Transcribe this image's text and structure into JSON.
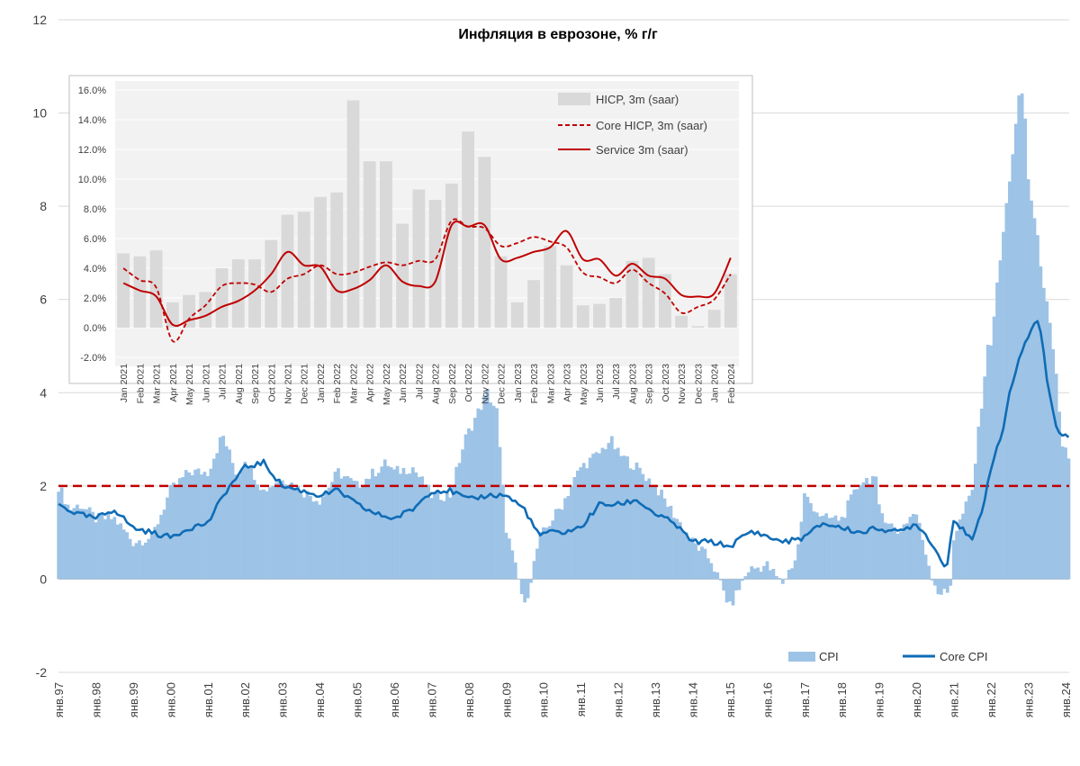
{
  "chart_data": [
    {
      "type": "bar+line",
      "title": "Инфляция в еврозоне, % г/г",
      "xlabel": "",
      "ylabel": "",
      "ylim": [
        -2,
        12
      ],
      "yticks": [
        "-2",
        "0",
        "2",
        "4",
        "6",
        "8",
        "10",
        "12"
      ],
      "xticks": [
        "янв.97",
        "янв.98",
        "янв.99",
        "янв.00",
        "янв.01",
        "янв.02",
        "янв.03",
        "янв.04",
        "янв.05",
        "янв.06",
        "янв.07",
        "янв.08",
        "янв.09",
        "янв.10",
        "янв.11",
        "янв.12",
        "янв.13",
        "янв.14",
        "янв.15",
        "янв.16",
        "янв.17",
        "янв.18",
        "янв.19",
        "янв.20",
        "янв.21",
        "янв.22",
        "янв.23",
        "янв.24"
      ],
      "target_line": {
        "y": 2,
        "color": "#c00000"
      },
      "legend": {
        "placement": "bottom-right",
        "entries": [
          "CPI",
          "Core CPI"
        ]
      },
      "colors": {
        "cpi": "#9dc3e6",
        "core": "#0f6cb6"
      },
      "series": [
        {
          "name": "CPI",
          "style": "bar",
          "anchors": [
            [
              1997.0,
              2.0
            ],
            [
              1997.3,
              1.5
            ],
            [
              1997.6,
              1.6
            ],
            [
              1998.0,
              1.3
            ],
            [
              1998.5,
              1.3
            ],
            [
              1999.0,
              0.8
            ],
            [
              1999.5,
              0.9
            ],
            [
              2000.0,
              1.9
            ],
            [
              2000.5,
              2.3
            ],
            [
              2001.0,
              2.3
            ],
            [
              2001.4,
              3.1
            ],
            [
              2001.8,
              2.2
            ],
            [
              2002.0,
              2.6
            ],
            [
              2002.5,
              1.9
            ],
            [
              2003.0,
              2.2
            ],
            [
              2003.5,
              1.9
            ],
            [
              2004.0,
              1.7
            ],
            [
              2004.5,
              2.3
            ],
            [
              2005.0,
              2.0
            ],
            [
              2005.8,
              2.5
            ],
            [
              2006.0,
              2.3
            ],
            [
              2006.5,
              2.4
            ],
            [
              2007.0,
              1.8
            ],
            [
              2007.5,
              1.8
            ],
            [
              2007.9,
              3.0
            ],
            [
              2008.5,
              4.0
            ],
            [
              2008.75,
              3.6
            ],
            [
              2009.0,
              1.1
            ],
            [
              2009.5,
              -0.6
            ],
            [
              2009.9,
              0.9
            ],
            [
              2010.0,
              1.0
            ],
            [
              2010.5,
              1.6
            ],
            [
              2011.0,
              2.4
            ],
            [
              2011.5,
              2.7
            ],
            [
              2011.8,
              3.0
            ],
            [
              2012.0,
              2.7
            ],
            [
              2012.5,
              2.4
            ],
            [
              2013.0,
              2.0
            ],
            [
              2013.5,
              1.4
            ],
            [
              2014.0,
              0.8
            ],
            [
              2014.5,
              0.4
            ],
            [
              2015.0,
              -0.6
            ],
            [
              2015.5,
              0.2
            ],
            [
              2016.0,
              0.3
            ],
            [
              2016.4,
              -0.1
            ],
            [
              2016.8,
              0.5
            ],
            [
              2017.0,
              1.8
            ],
            [
              2017.5,
              1.3
            ],
            [
              2018.0,
              1.3
            ],
            [
              2018.5,
              2.1
            ],
            [
              2018.9,
              2.2
            ],
            [
              2019.0,
              1.5
            ],
            [
              2019.5,
              1.0
            ],
            [
              2019.9,
              1.4
            ],
            [
              2020.0,
              1.4
            ],
            [
              2020.4,
              0.1
            ],
            [
              2020.6,
              -0.3
            ],
            [
              2020.9,
              -0.3
            ],
            [
              2021.0,
              0.9
            ],
            [
              2021.5,
              1.9
            ],
            [
              2021.9,
              4.9
            ],
            [
              2022.0,
              5.1
            ],
            [
              2022.5,
              8.6
            ],
            [
              2022.8,
              10.6
            ],
            [
              2022.9,
              10.1
            ],
            [
              2023.0,
              8.6
            ],
            [
              2023.3,
              7.0
            ],
            [
              2023.6,
              5.3
            ],
            [
              2023.75,
              4.3
            ],
            [
              2023.9,
              2.9
            ],
            [
              2024.0,
              2.8
            ],
            [
              2024.1,
              2.6
            ]
          ]
        },
        {
          "name": "Core CPI",
          "style": "line",
          "anchors": [
            [
              1997.0,
              1.6
            ],
            [
              1997.5,
              1.4
            ],
            [
              1998.0,
              1.3
            ],
            [
              1998.5,
              1.5
            ],
            [
              1999.0,
              1.1
            ],
            [
              1999.5,
              1.0
            ],
            [
              2000.0,
              0.9
            ],
            [
              2000.5,
              1.1
            ],
            [
              2001.0,
              1.2
            ],
            [
              2001.5,
              1.9
            ],
            [
              2002.0,
              2.4
            ],
            [
              2002.5,
              2.5
            ],
            [
              2003.0,
              2.0
            ],
            [
              2003.5,
              1.9
            ],
            [
              2004.0,
              1.8
            ],
            [
              2004.5,
              1.9
            ],
            [
              2005.0,
              1.6
            ],
            [
              2005.5,
              1.4
            ],
            [
              2006.0,
              1.3
            ],
            [
              2006.5,
              1.5
            ],
            [
              2007.0,
              1.9
            ],
            [
              2007.5,
              1.9
            ],
            [
              2008.0,
              1.7
            ],
            [
              2008.5,
              1.8
            ],
            [
              2009.0,
              1.8
            ],
            [
              2009.5,
              1.5
            ],
            [
              2009.9,
              0.9
            ],
            [
              2010.0,
              1.0
            ],
            [
              2010.5,
              1.0
            ],
            [
              2011.0,
              1.1
            ],
            [
              2011.5,
              1.6
            ],
            [
              2012.0,
              1.6
            ],
            [
              2012.5,
              1.7
            ],
            [
              2013.0,
              1.4
            ],
            [
              2013.5,
              1.2
            ],
            [
              2014.0,
              0.8
            ],
            [
              2014.5,
              0.8
            ],
            [
              2015.0,
              0.7
            ],
            [
              2015.5,
              1.0
            ],
            [
              2015.8,
              1.0
            ],
            [
              2016.0,
              0.9
            ],
            [
              2016.5,
              0.8
            ],
            [
              2017.0,
              0.9
            ],
            [
              2017.5,
              1.2
            ],
            [
              2018.0,
              1.1
            ],
            [
              2018.5,
              1.0
            ],
            [
              2019.0,
              1.1
            ],
            [
              2019.5,
              1.0
            ],
            [
              2020.0,
              1.2
            ],
            [
              2020.4,
              0.8
            ],
            [
              2020.8,
              0.2
            ],
            [
              2021.0,
              1.3
            ],
            [
              2021.5,
              0.8
            ],
            [
              2021.8,
              1.6
            ],
            [
              2022.0,
              2.4
            ],
            [
              2022.3,
              3.1
            ],
            [
              2022.5,
              4.0
            ],
            [
              2022.8,
              4.8
            ],
            [
              2023.0,
              5.2
            ],
            [
              2023.2,
              5.6
            ],
            [
              2023.35,
              5.3
            ],
            [
              2023.5,
              4.3
            ],
            [
              2023.7,
              3.4
            ],
            [
              2023.9,
              3.1
            ],
            [
              2024.1,
              3.1
            ]
          ]
        }
      ]
    },
    {
      "type": "bar+line",
      "title": "",
      "ylim": [
        -2,
        16
      ],
      "yticks": [
        "-2.0%",
        "0.0%",
        "2.0%",
        "4.0%",
        "6.0%",
        "8.0%",
        "10.0%",
        "12.0%",
        "14.0%",
        "16.0%"
      ],
      "categories": [
        "Jan 2021",
        "Feb 2021",
        "Mar 2021",
        "Apr 2021",
        "May 2021",
        "Jun 2021",
        "Jul 2021",
        "Aug 2021",
        "Sep 2021",
        "Oct 2021",
        "Nov 2021",
        "Dec 2021",
        "Jan 2022",
        "Feb 2022",
        "Mar 2022",
        "Apr 2022",
        "May 2022",
        "Jun 2022",
        "Jul 2022",
        "Aug 2022",
        "Sep 2022",
        "Oct 2022",
        "Nov 2022",
        "Dec 2022",
        "Jan 2023",
        "Feb 2023",
        "Mar 2023",
        "Apr 2023",
        "May 2023",
        "Jun 2023",
        "Jul 2023",
        "Aug 2023",
        "Sep 2023",
        "Oct 2023",
        "Nov 2023",
        "Dec 2023",
        "Jan 2024",
        "Feb 2024"
      ],
      "legend": {
        "placement": "top-right",
        "entries": [
          "HICP, 3m (saar)",
          "Core HICP, 3m (saar)",
          "Service  3m (saar)"
        ]
      },
      "colors": {
        "hicp": "#d9d9d9",
        "lines": "#c00000"
      },
      "series": [
        {
          "name": "HICP, 3m (saar)",
          "style": "bar",
          "values": [
            5.0,
            4.8,
            5.2,
            1.7,
            2.2,
            2.4,
            4.0,
            4.6,
            4.6,
            5.9,
            7.6,
            7.8,
            8.8,
            9.1,
            15.3,
            11.2,
            11.2,
            7.0,
            9.3,
            8.6,
            9.7,
            13.2,
            11.5,
            4.8,
            1.7,
            3.2,
            5.5,
            4.2,
            1.5,
            1.6,
            2.0,
            4.5,
            4.7,
            3.6,
            0.8,
            0.1,
            1.2,
            3.6
          ]
        },
        {
          "name": "Core HICP, 3m (saar)",
          "style": "dashed-line",
          "values": [
            4.0,
            3.2,
            2.7,
            -0.9,
            0.6,
            1.5,
            2.8,
            3.0,
            2.9,
            2.4,
            3.3,
            3.6,
            4.2,
            3.6,
            3.7,
            4.1,
            4.4,
            4.2,
            4.5,
            4.6,
            7.2,
            6.8,
            6.7,
            5.5,
            5.7,
            6.1,
            5.8,
            5.4,
            3.7,
            3.4,
            3.0,
            3.9,
            3.0,
            2.3,
            1.0,
            1.4,
            1.9,
            3.6
          ]
        },
        {
          "name": "Service  3m (saar)",
          "style": "line",
          "values": [
            3.0,
            2.5,
            2.1,
            0.2,
            0.5,
            0.8,
            1.4,
            1.8,
            2.5,
            3.6,
            5.1,
            4.2,
            4.1,
            2.5,
            2.6,
            3.2,
            4.2,
            3.1,
            2.8,
            3.1,
            6.9,
            6.8,
            6.9,
            4.6,
            4.7,
            5.1,
            5.4,
            6.5,
            4.6,
            4.6,
            3.5,
            4.3,
            3.5,
            3.3,
            2.2,
            2.1,
            2.3,
            4.7
          ]
        }
      ]
    }
  ]
}
